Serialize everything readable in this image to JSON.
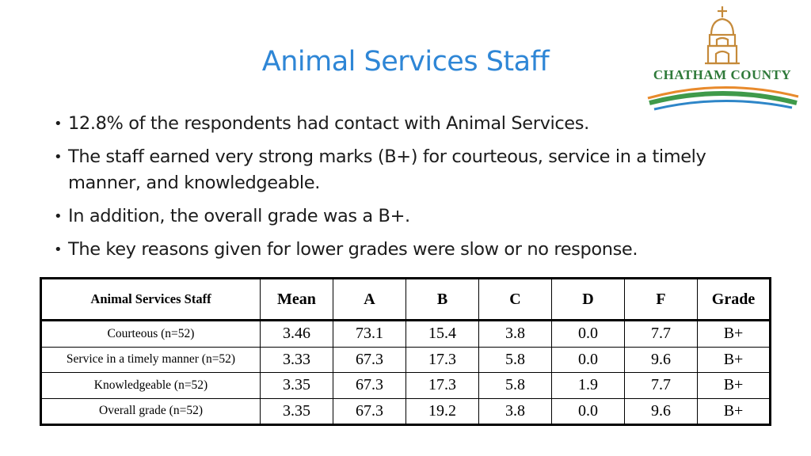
{
  "slide": {
    "title": "Animal Services Staff",
    "logo_text": "CHATHAM COUNTY",
    "bullets": [
      "12.8% of the respondents had contact with Animal Services.",
      "The staff earned very strong marks (B+) for courteous, service in a timely manner, and knowledgeable.",
      "In addition, the overall grade was a B+.",
      "The key reasons given for lower grades were slow or no response."
    ]
  },
  "table": {
    "headers": [
      "Animal Services Staff",
      "Mean",
      "A",
      "B",
      "C",
      "D",
      "F",
      "Grade"
    ],
    "rows": [
      [
        "Courteous (n=52)",
        "3.46",
        "73.1",
        "15.4",
        "3.8",
        "0.0",
        "7.7",
        "B+"
      ],
      [
        "Service in a timely manner (n=52)",
        "3.33",
        "67.3",
        "17.3",
        "5.8",
        "0.0",
        "9.6",
        "B+"
      ],
      [
        "Knowledgeable (n=52)",
        "3.35",
        "67.3",
        "17.3",
        "5.8",
        "1.9",
        "7.7",
        "B+"
      ],
      [
        "Overall grade (n=52)",
        "3.35",
        "67.3",
        "19.2",
        "3.8",
        "0.0",
        "9.6",
        "B+"
      ]
    ]
  },
  "colors": {
    "title": "#2e86d6",
    "logo_text": "#2f7a3a",
    "logo_arc_orange": "#e88a2c",
    "logo_arc_green": "#3f9a4a",
    "logo_arc_blue": "#2e86c8",
    "logo_building": "#c58a3a"
  }
}
